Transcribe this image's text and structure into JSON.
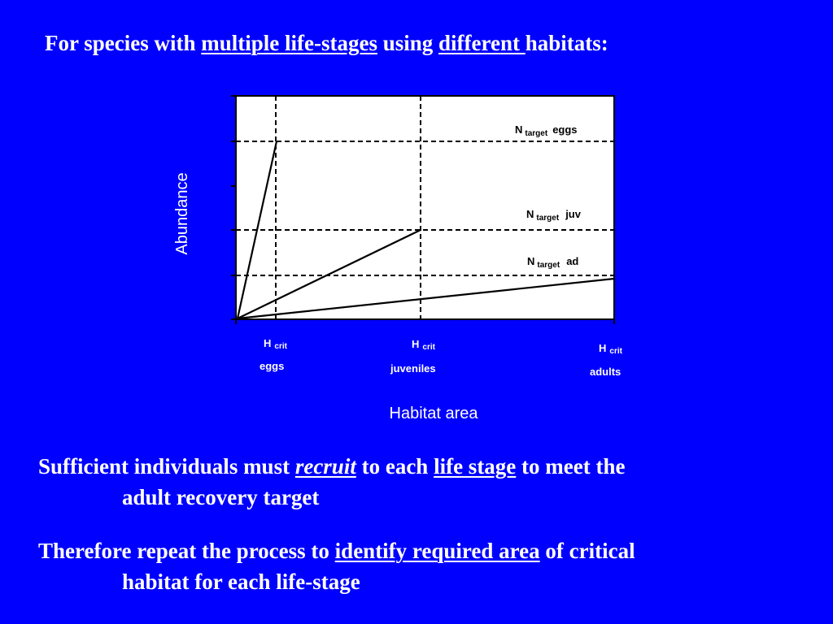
{
  "title": {
    "t1": "For species with ",
    "t2": "multiple life-stages",
    "t3": " using ",
    "t4": "different ",
    "t5": "habitats:"
  },
  "chart": {
    "y_axis_label": "Abundance",
    "x_axis_label": "Habitat area",
    "line_labels": [
      {
        "main": "N",
        "sub": "target",
        "stage": "eggs"
      },
      {
        "main": "N",
        "sub": "target",
        "stage": "juv"
      },
      {
        "main": "N",
        "sub": "target",
        "stage": "ad"
      }
    ],
    "h_labels": [
      {
        "main": "H",
        "sub": "crit",
        "stage": "eggs"
      },
      {
        "main": "H",
        "sub": "crit",
        "stage": "juveniles"
      },
      {
        "main": "H",
        "sub": "crit",
        "stage": "adults"
      }
    ]
  },
  "body": {
    "p1": {
      "a": "Sufficient individuals must ",
      "b": "recruit",
      "c": " to each ",
      "d": "life stage",
      "e": " to meet the",
      "f": "adult recovery target"
    },
    "p2": {
      "a": "Therefore repeat the process to ",
      "b": "identify required area",
      "c": " of critical",
      "d": "habitat for each life-stage"
    }
  },
  "colors": {
    "background": "#0000ff",
    "plot_area": "#ffffff",
    "text": "#ffffff",
    "lines": "#000000"
  }
}
